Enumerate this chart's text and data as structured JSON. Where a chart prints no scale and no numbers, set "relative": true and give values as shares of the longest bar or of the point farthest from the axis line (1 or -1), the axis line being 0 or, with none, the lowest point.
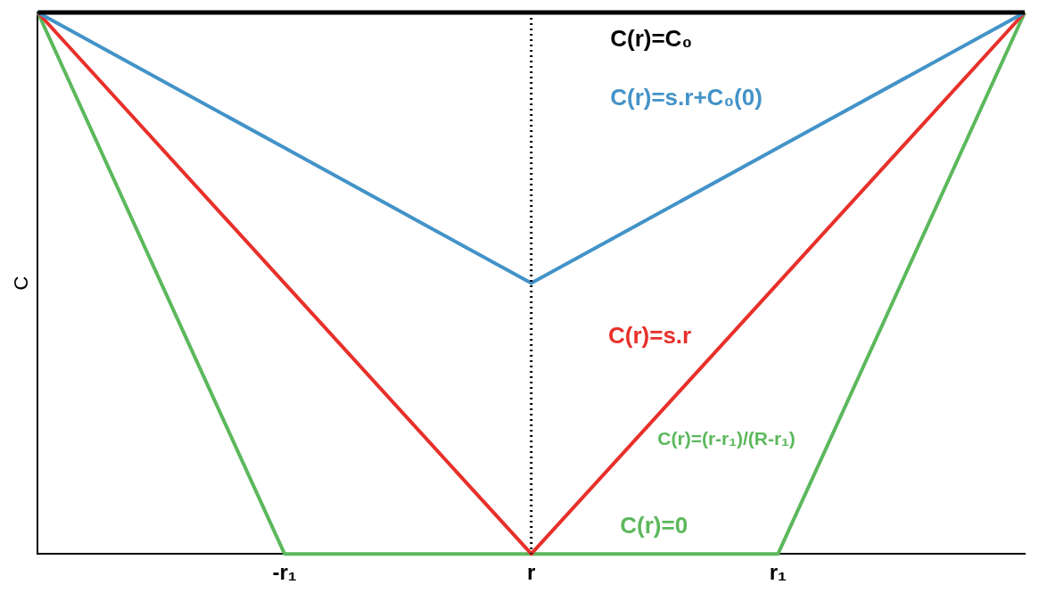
{
  "chart_data": {
    "type": "line",
    "relative": true,
    "ylabel": "C",
    "categories": [
      null,
      "-r₁",
      "r",
      "r₁",
      null
    ],
    "series": [
      {
        "color": "#000000",
        "values": [
          1,
          1,
          1,
          1,
          1
        ]
      },
      {
        "color": "#4393c8",
        "values": [
          1,
          0.75,
          0.5,
          0.75,
          1
        ]
      },
      {
        "color": "#e8302a",
        "values": [
          1,
          0.5,
          0,
          0.5,
          1
        ]
      },
      {
        "color": "#5cb85c",
        "values": [
          1,
          0,
          0,
          0,
          1
        ]
      }
    ],
    "ref_lines": [
      {
        "axis": "x",
        "value": "r",
        "color": "#000000",
        "line_style": "dotted"
      }
    ],
    "annotations": [
      "C(r)=C₀",
      "C(r)=s.r+C₀(0)",
      "C(r)=s.r",
      "C(r)=(r-r₁)/(R-r₁)",
      "C(r)=0"
    ],
    "legend": false,
    "grid": false,
    "marker": "none",
    "line_style": "solid"
  }
}
